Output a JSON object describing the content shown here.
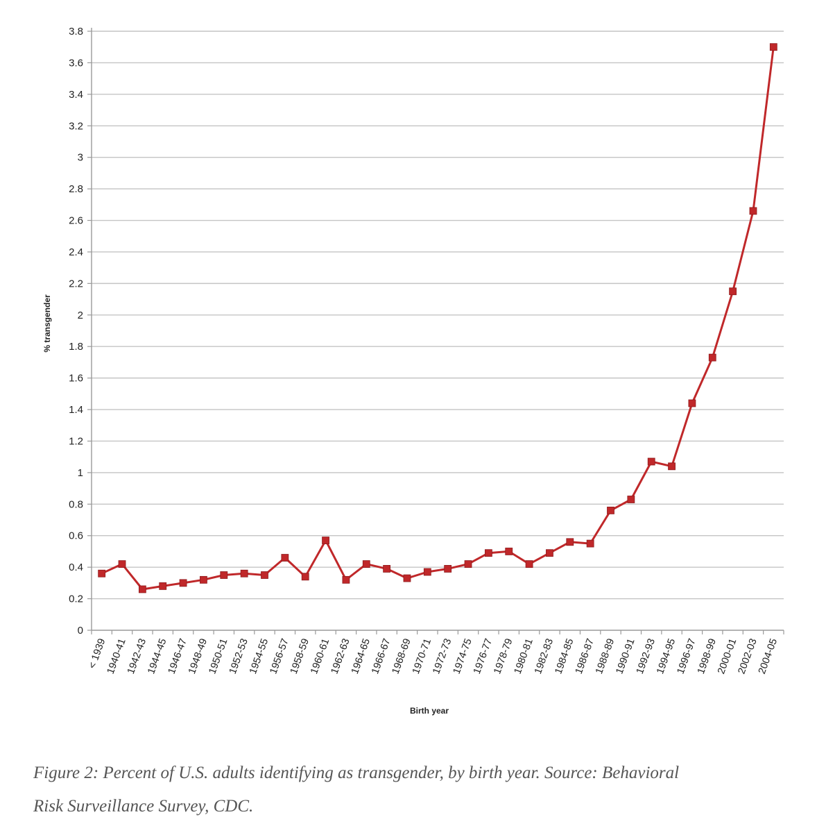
{
  "chart_data": {
    "type": "line",
    "xlabel": "Birth year",
    "ylabel": "% transgender",
    "ylim": [
      0,
      3.8
    ],
    "yticks": [
      "0",
      "0.2",
      "0.4",
      "0.6",
      "0.8",
      "1",
      "1.2",
      "1.4",
      "1.6",
      "1.8",
      "2",
      "2.2",
      "2.4",
      "2.6",
      "2.8",
      "3",
      "3.2",
      "3.4",
      "3.6",
      "3.8"
    ],
    "grid": true,
    "legend": "none",
    "categories": [
      "< 1939",
      "1940-41",
      "1942-43",
      "1944-45",
      "1946-47",
      "1948-49",
      "1950-51",
      "1952-53",
      "1954-55",
      "1956-57",
      "1958-59",
      "1960-61",
      "1962-63",
      "1964-65",
      "1966-67",
      "1968-69",
      "1970-71",
      "1972-73",
      "1974-75",
      "1976-77",
      "1978-79",
      "1980-81",
      "1982-83",
      "1984-85",
      "1986-87",
      "1988-89",
      "1990-91",
      "1992-93",
      "1994-95",
      "1996-97",
      "1998-99",
      "2000-01",
      "2002-03",
      "2004-05"
    ],
    "series": [
      {
        "color": "#c0282a",
        "marker": "square",
        "values": [
          0.36,
          0.42,
          0.26,
          0.28,
          0.3,
          0.32,
          0.35,
          0.36,
          0.35,
          0.46,
          0.34,
          0.57,
          0.32,
          0.42,
          0.39,
          0.33,
          0.37,
          0.39,
          0.42,
          0.49,
          0.5,
          0.42,
          0.49,
          0.56,
          0.55,
          0.76,
          0.83,
          1.07,
          1.04,
          1.44,
          1.73,
          2.15,
          2.66,
          3.7
        ]
      }
    ]
  },
  "caption": {
    "line1": "Figure 2: Percent of U.S. adults identifying as transgender, by birth year. Source: Behavioral",
    "line2": "Risk Surveillance Survey, CDC."
  }
}
